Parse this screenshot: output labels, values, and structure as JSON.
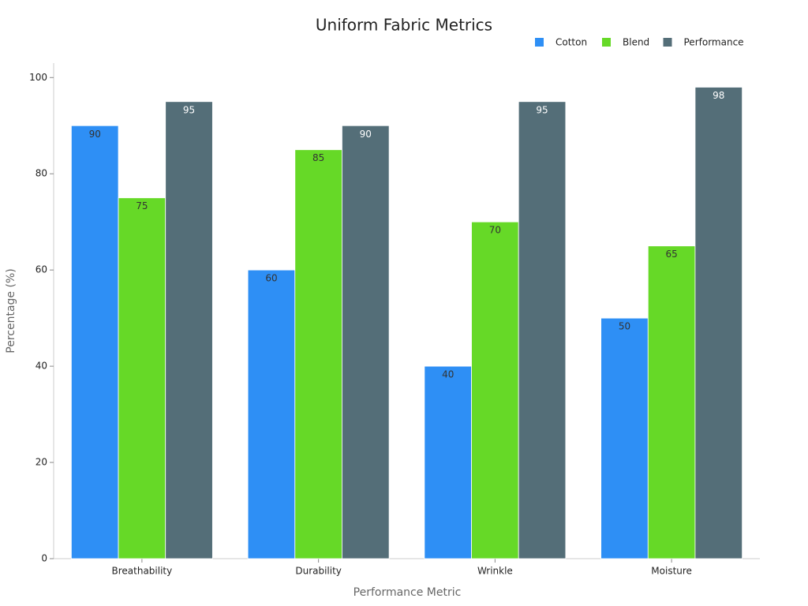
{
  "chart_data": {
    "type": "bar",
    "title": "Uniform Fabric Metrics",
    "x_label": "Performance Metric",
    "y_label": "Percentage (%)",
    "categories": [
      "Breathability",
      "Durability",
      "Wrinkle",
      "Moisture"
    ],
    "series": [
      {
        "name": "Cotton",
        "color": "#2e8ff5",
        "values": [
          90,
          60,
          40,
          50
        ]
      },
      {
        "name": "Blend",
        "color": "#66d927",
        "values": [
          75,
          85,
          70,
          65
        ]
      },
      {
        "name": "Performance",
        "color": "#546e78",
        "values": [
          95,
          90,
          95,
          98
        ]
      }
    ],
    "ylim": [
      0,
      103
    ],
    "yticks": [
      0,
      20,
      40,
      60,
      80,
      100
    ],
    "legend": "top-right"
  }
}
